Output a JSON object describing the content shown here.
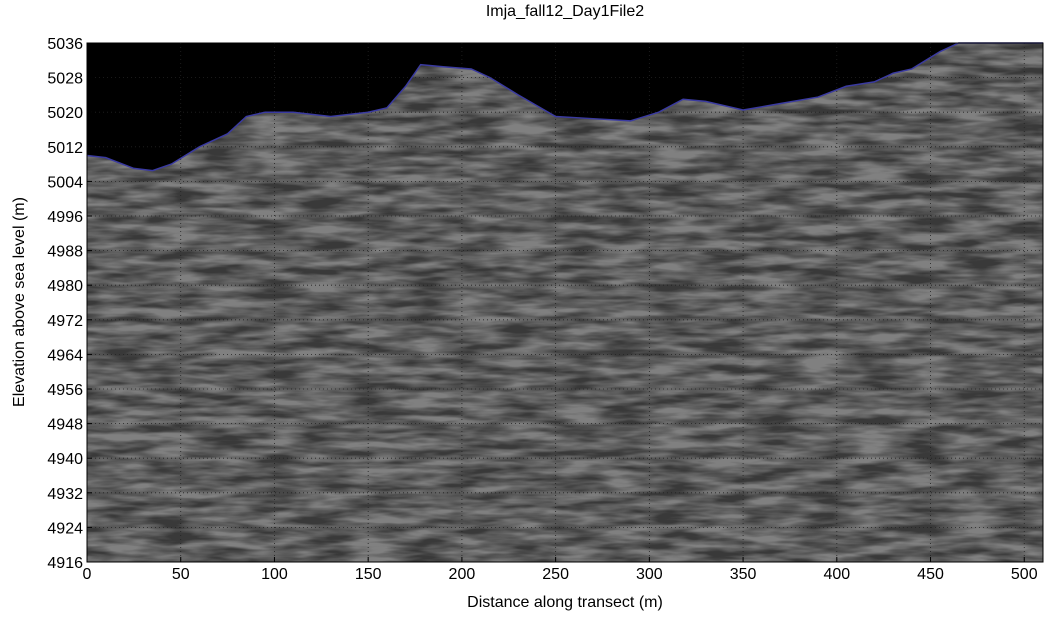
{
  "chart_data": {
    "type": "line",
    "title": "Imja_fall12_Day1File2",
    "x_label": "Distance along transect (m)",
    "y_label": "Elevation above sea level (m)",
    "xlim": [
      0,
      510
    ],
    "ylim": [
      4916,
      5036
    ],
    "xticks": [
      0,
      50,
      100,
      150,
      200,
      250,
      300,
      350,
      400,
      450,
      500
    ],
    "yticks": [
      4916,
      4924,
      4932,
      4940,
      4948,
      4956,
      4964,
      4972,
      4980,
      4988,
      4996,
      5004,
      5012,
      5020,
      5028,
      5036
    ],
    "grid": true,
    "x": [
      0,
      10,
      25,
      35,
      45,
      60,
      75,
      85,
      95,
      110,
      130,
      150,
      160,
      170,
      178,
      190,
      205,
      215,
      230,
      250,
      270,
      290,
      305,
      318,
      330,
      350,
      370,
      390,
      405,
      420,
      430,
      440,
      455,
      465,
      480,
      510
    ],
    "series": [
      {
        "color": "#3a3aa0",
        "values": [
          5010,
          5009.5,
          5007,
          5006.5,
          5008,
          5012,
          5015,
          5019,
          5020,
          5020,
          5019,
          5020,
          5021,
          5026,
          5031,
          5030.5,
          5030,
          5028,
          5024,
          5019,
          5018.5,
          5018,
          5020,
          5023,
          5022.5,
          5020.5,
          5022,
          5023.5,
          5026,
          5027,
          5029,
          5030,
          5034,
          5036,
          5036,
          5036
        ]
      }
    ]
  }
}
